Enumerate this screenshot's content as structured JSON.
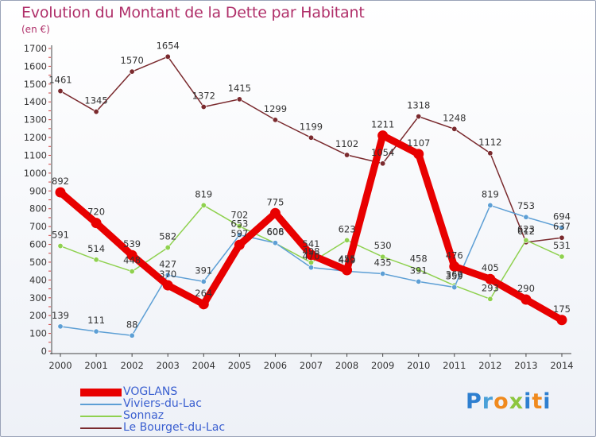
{
  "chart_data": {
    "type": "line",
    "title": "Evolution du Montant de la Dette par Habitant",
    "unit_label": "(en €)",
    "x": [
      "2000",
      "2001",
      "2002",
      "2003",
      "2004",
      "2005",
      "2006",
      "2007",
      "2008",
      "2009",
      "2010",
      "2011",
      "2012",
      "2013",
      "2014"
    ],
    "ylim": [
      0,
      1700
    ],
    "yticks": [
      0,
      100,
      200,
      300,
      400,
      500,
      600,
      700,
      800,
      900,
      1000,
      1100,
      1200,
      1300,
      1400,
      1500,
      1600,
      1700
    ],
    "grid": false,
    "legend_position": "bottom-left",
    "series": [
      {
        "name": "VOGLANS",
        "color": "#e80000",
        "values": [
          892,
          720,
          539,
          370,
          264,
          597,
          775,
          541,
          455,
          1211,
          1107,
          476,
          405,
          290,
          175
        ],
        "labels": [
          "892",
          "720",
          "539",
          "370",
          "264",
          "597",
          "775",
          "541",
          "455",
          "1211",
          "1107",
          "476",
          "405",
          "290",
          "175"
        ]
      },
      {
        "name": "Viviers-du-Lac",
        "color": "#5d9fd5",
        "values": [
          139,
          111,
          88,
          427,
          391,
          653,
          608,
          470,
          449,
          435,
          391,
          359,
          819,
          753,
          694
        ],
        "labels": [
          "139",
          "111",
          "88",
          "427",
          "391",
          "653",
          "608",
          "470",
          "449",
          "435",
          "391",
          "359",
          "819",
          "753",
          "694"
        ]
      },
      {
        "name": "Sonnaz",
        "color": "#8fd14f",
        "values": [
          591,
          514,
          448,
          582,
          819,
          702,
          606,
          498,
          623,
          530,
          458,
          369,
          293,
          623,
          531
        ],
        "labels": [
          "591",
          "514",
          "448",
          "582",
          "819",
          "702",
          "606",
          "498",
          "623",
          "530",
          "458",
          "369",
          "293",
          "623",
          "531"
        ]
      },
      {
        "name": "Le Bourget-du-Lac",
        "color": "#7a2a2e",
        "values": [
          1461,
          1345,
          1570,
          1654,
          1372,
          1415,
          1299,
          1199,
          1102,
          1054,
          1318,
          1248,
          1112,
          612,
          637
        ],
        "labels": [
          "1461",
          "1345",
          "1570",
          "1654",
          "1372",
          "1415",
          "1299",
          "1199",
          "1102",
          "1054",
          "1318",
          "1248",
          "1112",
          "612",
          "637"
        ]
      }
    ]
  },
  "brand": {
    "p": "P",
    "r": "r",
    "o": "o",
    "x": "x",
    "i": "i",
    "t": "t",
    "i2": "i"
  }
}
